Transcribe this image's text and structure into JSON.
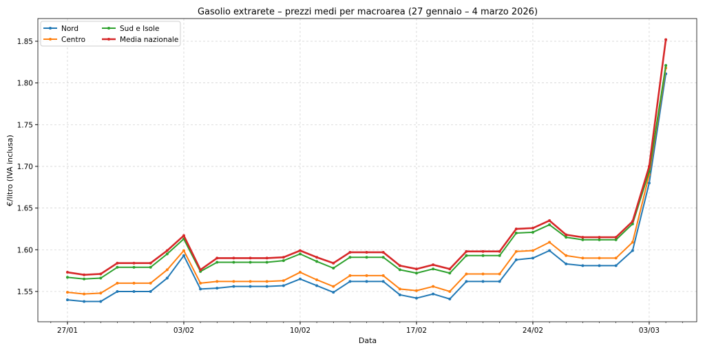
{
  "chart_data": {
    "type": "line",
    "title": "Gasolio extrarete – prezzi medi per macroarea (27 gennaio – 4 marzo 2026)",
    "xlabel": "Data",
    "ylabel": "€/litro (IVA inclusa)",
    "ylim": [
      1.5137,
      1.8772
    ],
    "yticks": [
      1.55,
      1.6,
      1.65,
      1.7,
      1.75,
      1.8,
      1.85
    ],
    "ytick_labels": [
      "1.55",
      "1.60",
      "1.65",
      "1.70",
      "1.75",
      "1.80",
      "1.85"
    ],
    "xticks": [
      {
        "day": 0,
        "label": "27/01"
      },
      {
        "day": 7,
        "label": "03/02"
      },
      {
        "day": 14,
        "label": "10/02"
      },
      {
        "day": 21,
        "label": "17/02"
      },
      {
        "day": 28,
        "label": "24/02"
      },
      {
        "day": 35,
        "label": "03/03"
      }
    ],
    "x_start": "27/01",
    "grid": true,
    "legend_position": "top-left",
    "series": [
      {
        "name": "Nord",
        "color": "#1f77b4",
        "values": [
          1.54,
          1.538,
          1.538,
          1.55,
          1.55,
          1.55,
          1.566,
          1.593,
          1.553,
          1.554,
          1.556,
          1.556,
          1.556,
          1.557,
          1.565,
          1.557,
          1.549,
          1.562,
          1.562,
          1.562,
          1.546,
          1.542,
          1.547,
          1.541,
          1.562,
          1.562,
          1.562,
          1.588,
          1.59,
          1.599,
          1.583,
          1.581,
          1.581,
          1.581,
          1.599,
          1.68,
          1.811
        ]
      },
      {
        "name": "Centro",
        "color": "#ff7f0e",
        "values": [
          1.549,
          1.547,
          1.548,
          1.56,
          1.56,
          1.56,
          1.576,
          1.599,
          1.56,
          1.562,
          1.562,
          1.562,
          1.562,
          1.563,
          1.573,
          1.564,
          1.556,
          1.569,
          1.569,
          1.569,
          1.553,
          1.551,
          1.556,
          1.55,
          1.571,
          1.571,
          1.571,
          1.598,
          1.599,
          1.609,
          1.593,
          1.59,
          1.59,
          1.59,
          1.609,
          1.69,
          1.818
        ]
      },
      {
        "name": "Sud e Isole",
        "color": "#2ca02c",
        "values": [
          1.567,
          1.565,
          1.566,
          1.579,
          1.579,
          1.579,
          1.595,
          1.613,
          1.574,
          1.585,
          1.585,
          1.585,
          1.585,
          1.587,
          1.595,
          1.586,
          1.578,
          1.591,
          1.591,
          1.591,
          1.576,
          1.572,
          1.577,
          1.572,
          1.593,
          1.593,
          1.593,
          1.62,
          1.621,
          1.63,
          1.615,
          1.612,
          1.612,
          1.612,
          1.631,
          1.694,
          1.821
        ]
      },
      {
        "name": "Media nazionale",
        "color": "#d62728",
        "values": [
          1.573,
          1.57,
          1.571,
          1.584,
          1.584,
          1.584,
          1.599,
          1.617,
          1.576,
          1.59,
          1.59,
          1.59,
          1.59,
          1.591,
          1.599,
          1.591,
          1.584,
          1.597,
          1.597,
          1.597,
          1.581,
          1.577,
          1.582,
          1.577,
          1.598,
          1.598,
          1.598,
          1.625,
          1.626,
          1.635,
          1.618,
          1.615,
          1.615,
          1.615,
          1.634,
          1.7,
          1.852
        ]
      }
    ]
  }
}
